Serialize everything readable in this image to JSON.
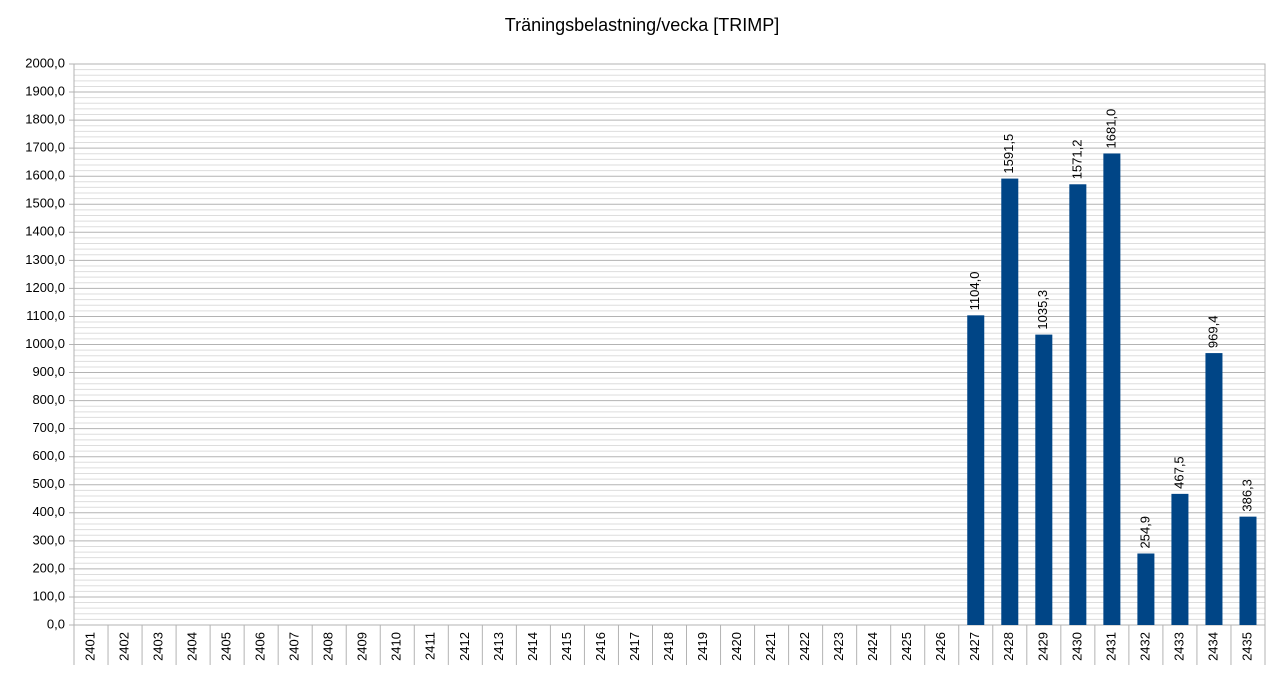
{
  "chart_data": {
    "type": "bar",
    "title": "Träningsbelastning/vecka [TRIMP]",
    "categories": [
      "2401",
      "2402",
      "2403",
      "2404",
      "2405",
      "2406",
      "2407",
      "2408",
      "2409",
      "2410",
      "2411",
      "2412",
      "2413",
      "2414",
      "2415",
      "2416",
      "2417",
      "2418",
      "2419",
      "2420",
      "2421",
      "2422",
      "2423",
      "2424",
      "2425",
      "2426",
      "2427",
      "2428",
      "2429",
      "2430",
      "2431",
      "2432",
      "2433",
      "2434",
      "2435"
    ],
    "values": [
      null,
      null,
      null,
      null,
      null,
      null,
      null,
      null,
      null,
      null,
      null,
      null,
      null,
      null,
      null,
      null,
      null,
      null,
      null,
      null,
      null,
      null,
      null,
      null,
      null,
      null,
      1104.0,
      1591.5,
      1035.3,
      1571.2,
      1681.0,
      254.9,
      467.5,
      969.4,
      386.3
    ],
    "value_labels": [
      null,
      null,
      null,
      null,
      null,
      null,
      null,
      null,
      null,
      null,
      null,
      null,
      null,
      null,
      null,
      null,
      null,
      null,
      null,
      null,
      null,
      null,
      null,
      null,
      null,
      null,
      "1104,0",
      "1591,5",
      "1035,3",
      "1571,2",
      "1681,0",
      "254,9",
      "467,5",
      "969,4",
      "386,3"
    ],
    "color": "#004586",
    "ylim": [
      0,
      2000
    ],
    "yticks": [
      {
        "value": 0,
        "label": "0,0"
      },
      {
        "value": 100,
        "label": "100,0"
      },
      {
        "value": 200,
        "label": "200,0"
      },
      {
        "value": 300,
        "label": "300,0"
      },
      {
        "value": 400,
        "label": "400,0"
      },
      {
        "value": 500,
        "label": "500,0"
      },
      {
        "value": 600,
        "label": "600,0"
      },
      {
        "value": 700,
        "label": "700,0"
      },
      {
        "value": 800,
        "label": "800,0"
      },
      {
        "value": 900,
        "label": "900,0"
      },
      {
        "value": 1000,
        "label": "1000,0"
      },
      {
        "value": 1100,
        "label": "1100,0"
      },
      {
        "value": 1200,
        "label": "1200,0"
      },
      {
        "value": 1300,
        "label": "1300,0"
      },
      {
        "value": 1400,
        "label": "1400,0"
      },
      {
        "value": 1500,
        "label": "1500,0"
      },
      {
        "value": 1600,
        "label": "1600,0"
      },
      {
        "value": 1700,
        "label": "1700,0"
      },
      {
        "value": 1800,
        "label": "1800,0"
      },
      {
        "value": 1900,
        "label": "1900,0"
      },
      {
        "value": 2000,
        "label": "2000,0"
      }
    ],
    "grid": true,
    "minor_grid": true
  }
}
